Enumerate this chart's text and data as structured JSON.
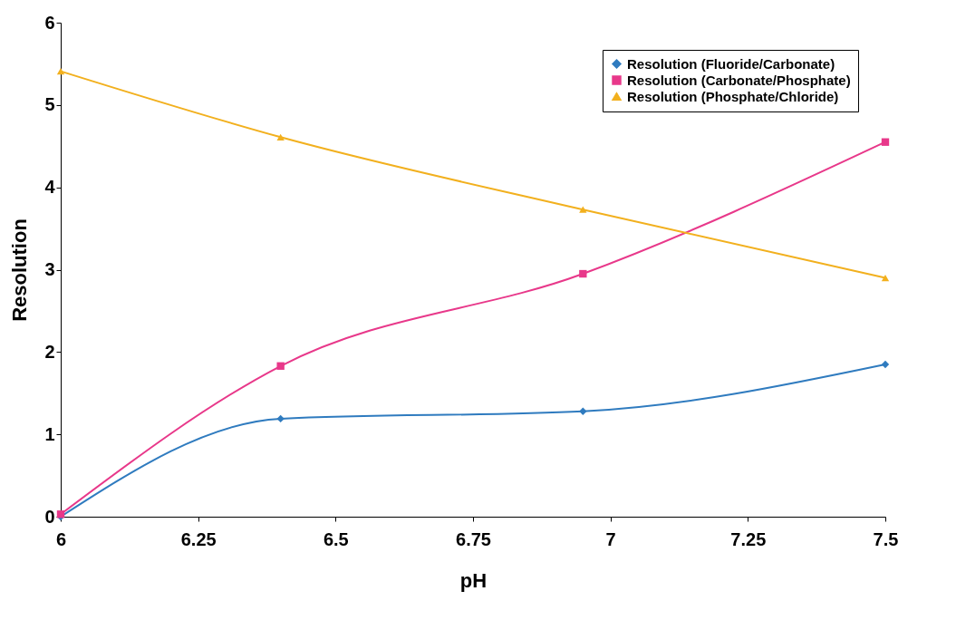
{
  "chart_data": {
    "type": "line",
    "xlabel": "pH",
    "ylabel": "Resolution",
    "x": [
      6,
      6.4,
      6.95,
      7.5
    ],
    "xlim": [
      6,
      7.5
    ],
    "xticks": [
      6,
      6.25,
      6.5,
      6.75,
      7,
      7.25,
      7.5
    ],
    "ylim": [
      0,
      6
    ],
    "yticks": [
      0,
      1,
      2,
      3,
      4,
      5,
      6
    ],
    "grid": false,
    "legend": "top right",
    "series": [
      {
        "name": "Resolution (Fluoride/Carbonate)",
        "color": "#2f7bbf",
        "marker": "diamond",
        "values": [
          0,
          1.19,
          1.28,
          1.85
        ]
      },
      {
        "name": "Resolution (Carbonate/Phosphate)",
        "color": "#e8388a",
        "marker": "square",
        "values": [
          0.03,
          1.83,
          2.95,
          4.55
        ]
      },
      {
        "name": "Resolution (Phosphate/Chloride)",
        "color": "#f2b01e",
        "marker": "triangle",
        "values": [
          5.41,
          4.61,
          3.73,
          2.9
        ]
      }
    ]
  }
}
